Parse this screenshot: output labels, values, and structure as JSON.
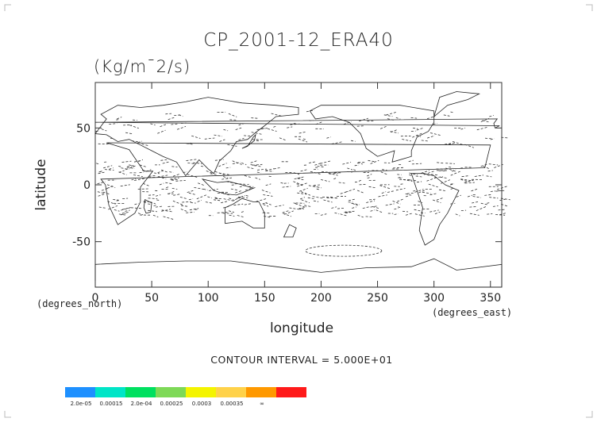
{
  "chart_data": {
    "type": "contour",
    "title": "CP_2001-12_ERA40",
    "subtitle": "(Kg/m¯2/s)",
    "xlabel": "longitude",
    "ylabel": "latitude",
    "x_units": "(degrees_north)",
    "y_units": "(degrees_east)",
    "xlim": [
      0,
      360
    ],
    "ylim": [
      -90,
      90
    ],
    "x_ticks": [
      0,
      50,
      100,
      150,
      200,
      250,
      300,
      350
    ],
    "y_ticks": [
      -50,
      0,
      50
    ],
    "contour_interval_label": "CONTOUR INTERVAL = 5.000E+01",
    "colorbar": {
      "colors": [
        "#1e90ff",
        "#00e5c7",
        "#00e060",
        "#7ed957",
        "#f4f400",
        "#ffd24a",
        "#ff9900",
        "#ff1a1a"
      ],
      "labels": [
        "2.0e-05",
        "0.00015",
        "2.0e-04",
        "0.00025",
        "0.0003",
        "0.00035",
        "∞"
      ]
    }
  }
}
